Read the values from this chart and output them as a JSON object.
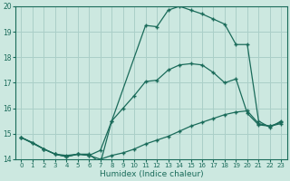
{
  "title": "",
  "xlabel": "Humidex (Indice chaleur)",
  "ylabel": "",
  "bg_color": "#cce8e0",
  "grid_color": "#aacfc8",
  "line_color": "#1a6b5a",
  "xlim": [
    -0.5,
    23.5
  ],
  "ylim": [
    14,
    20
  ],
  "yticks": [
    14,
    15,
    16,
    17,
    18,
    19,
    20
  ],
  "xticks": [
    0,
    1,
    2,
    3,
    4,
    5,
    6,
    7,
    8,
    9,
    10,
    11,
    12,
    13,
    14,
    15,
    16,
    17,
    18,
    19,
    20,
    21,
    22,
    23
  ],
  "line1_x": [
    0,
    1,
    2,
    3,
    4,
    5,
    6,
    7,
    8,
    9,
    10,
    11,
    12,
    13,
    14,
    15,
    16,
    17,
    18,
    19,
    20,
    21,
    22,
    23
  ],
  "line1_y": [
    14.85,
    14.65,
    14.4,
    14.2,
    14.15,
    14.2,
    14.15,
    14.0,
    14.15,
    14.25,
    14.4,
    14.6,
    14.75,
    14.9,
    15.1,
    15.3,
    15.45,
    15.6,
    15.75,
    15.85,
    15.9,
    15.4,
    15.3,
    15.4
  ],
  "line2_x": [
    0,
    2,
    3,
    4,
    5,
    6,
    7,
    8,
    11,
    12,
    13,
    14,
    15,
    16,
    17,
    18,
    19,
    20,
    21,
    22,
    23
  ],
  "line2_y": [
    14.85,
    14.4,
    14.2,
    14.1,
    14.2,
    14.2,
    13.85,
    15.5,
    19.25,
    19.2,
    19.85,
    20.0,
    19.85,
    19.7,
    19.5,
    19.3,
    18.5,
    18.5,
    15.5,
    15.25,
    15.5
  ],
  "line3_x": [
    0,
    1,
    2,
    3,
    4,
    5,
    6,
    7,
    8,
    9,
    10,
    11,
    12,
    13,
    14,
    15,
    16,
    17,
    18,
    19,
    20,
    21,
    22,
    23
  ],
  "line3_y": [
    14.85,
    14.65,
    14.4,
    14.2,
    14.1,
    14.2,
    14.15,
    14.35,
    15.5,
    16.0,
    16.5,
    17.05,
    17.1,
    17.5,
    17.7,
    17.75,
    17.7,
    17.4,
    17.0,
    17.15,
    15.8,
    15.35,
    15.3,
    15.45
  ]
}
